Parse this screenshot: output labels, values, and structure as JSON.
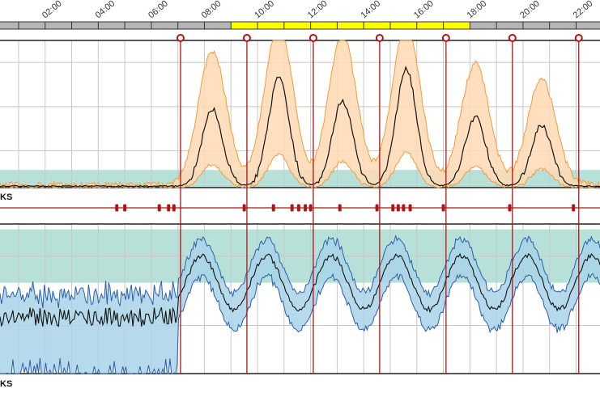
{
  "chart_data": [
    {
      "type": "area",
      "panel": "upper",
      "x_unit": "hour of day",
      "xlim": [
        0.3,
        22.9
      ],
      "x_tick_labels": [
        "02:00",
        "04:00",
        "06:00",
        "08:00",
        "10:00",
        "12:00",
        "14:00",
        "16:00",
        "18:00",
        "20:00",
        "22:00"
      ],
      "x_tick_values": [
        2,
        4,
        6,
        8,
        10,
        12,
        14,
        16,
        18,
        20,
        22
      ],
      "timeline_highlight": {
        "start": 9,
        "end": 18,
        "color": "#ffff00"
      },
      "event_markers": [
        7.1,
        9.6,
        12.1,
        14.6,
        17.1,
        19.6,
        22.1
      ],
      "reference_band": {
        "low": 0,
        "high": 0.12,
        "color": "#9fd5cc"
      },
      "ylim": [
        0,
        1
      ],
      "series_colors": {
        "band": "#ffd9b3",
        "band_edge": "#f59a3a",
        "median": "#111111"
      },
      "peaks": [
        {
          "center": 8.3,
          "height": 0.52
        },
        {
          "center": 10.8,
          "height": 0.73
        },
        {
          "center": 13.2,
          "height": 0.58
        },
        {
          "center": 15.6,
          "height": 0.79
        },
        {
          "center": 18.2,
          "height": 0.47
        },
        {
          "center": 20.7,
          "height": 0.41
        }
      ],
      "section_label": "KS"
    },
    {
      "type": "area",
      "panel": "lower",
      "x_unit": "hour of day",
      "xlim": [
        0.3,
        22.9
      ],
      "reference_band": {
        "low": 0.5,
        "high": 1,
        "color": "#9fd5cc"
      },
      "ylim": [
        -0.35,
        1.05
      ],
      "series_colors": {
        "band": "#a9d3e8",
        "band_edge": "#2a5fa8",
        "median": "#111111"
      },
      "event_dots": [
        4.7,
        5.0,
        6.3,
        6.65,
        6.85,
        9.5,
        10.6,
        11.3,
        11.55,
        11.8,
        12.0,
        13.1,
        14.5,
        15.1,
        15.3,
        15.5,
        15.75,
        17.0,
        19.5,
        21.9
      ],
      "section_label": "KS"
    }
  ]
}
